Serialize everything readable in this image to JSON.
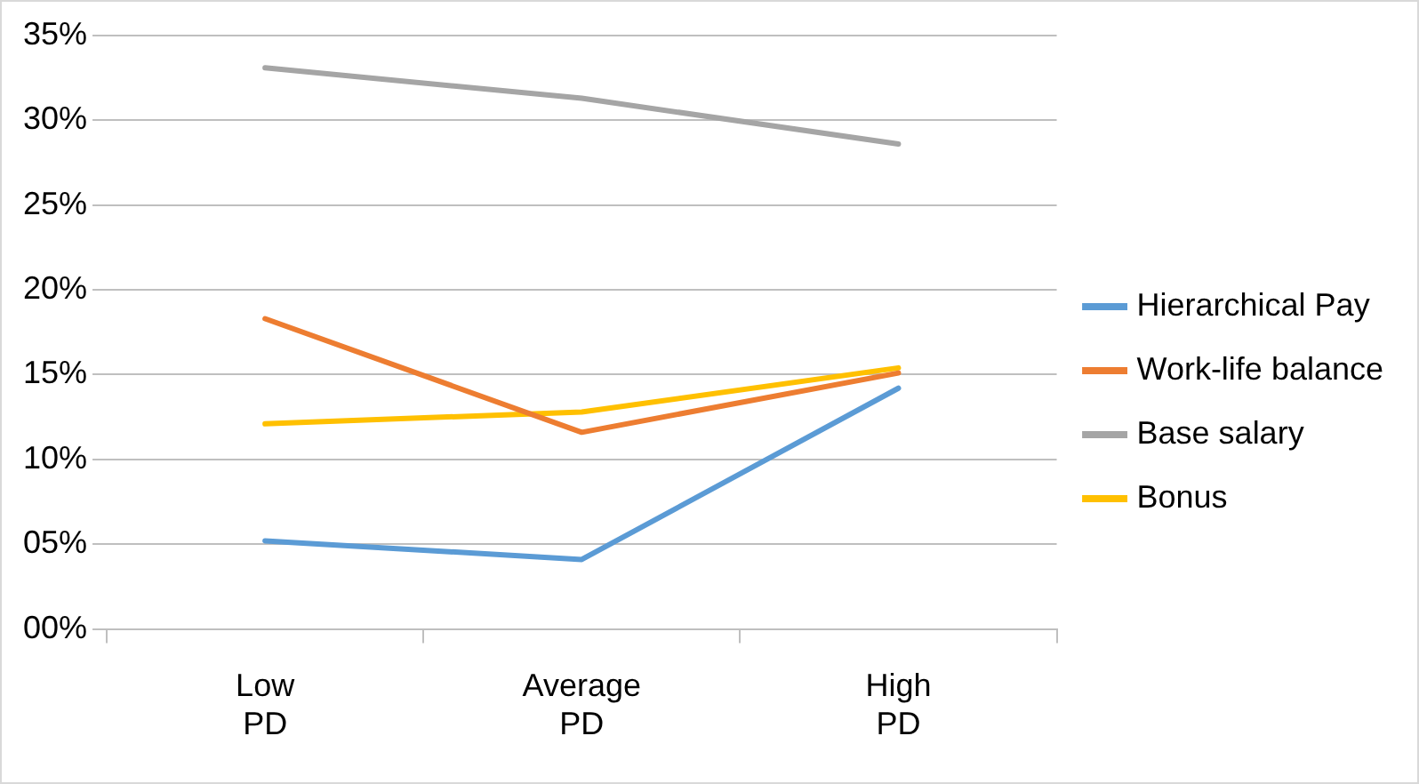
{
  "chart_data": {
    "type": "line",
    "categories": [
      "Low PD",
      "Average PD",
      "High PD"
    ],
    "series": [
      {
        "name": "Hierarchical Pay",
        "color": "#5b9bd5",
        "values": [
          5.2,
          4.1,
          14.2
        ]
      },
      {
        "name": "Work-life balance",
        "color": "#ed7d31",
        "values": [
          18.3,
          11.6,
          15.1
        ]
      },
      {
        "name": "Base salary",
        "color": "#a5a5a5",
        "values": [
          33.1,
          31.3,
          28.6
        ]
      },
      {
        "name": "Bonus",
        "color": "#ffc000",
        "values": [
          12.1,
          12.8,
          15.4
        ]
      }
    ],
    "ylim": [
      0,
      35
    ],
    "yticks": [
      {
        "value": 0,
        "label": "00%"
      },
      {
        "value": 5,
        "label": "05%"
      },
      {
        "value": 10,
        "label": "10%"
      },
      {
        "value": 15,
        "label": "15%"
      },
      {
        "value": 20,
        "label": "20%"
      },
      {
        "value": 25,
        "label": "25%"
      },
      {
        "value": 30,
        "label": "30%"
      },
      {
        "value": 35,
        "label": "35%"
      }
    ],
    "grid": "y",
    "legend": "right",
    "marker": "none",
    "line_style": "solid"
  }
}
